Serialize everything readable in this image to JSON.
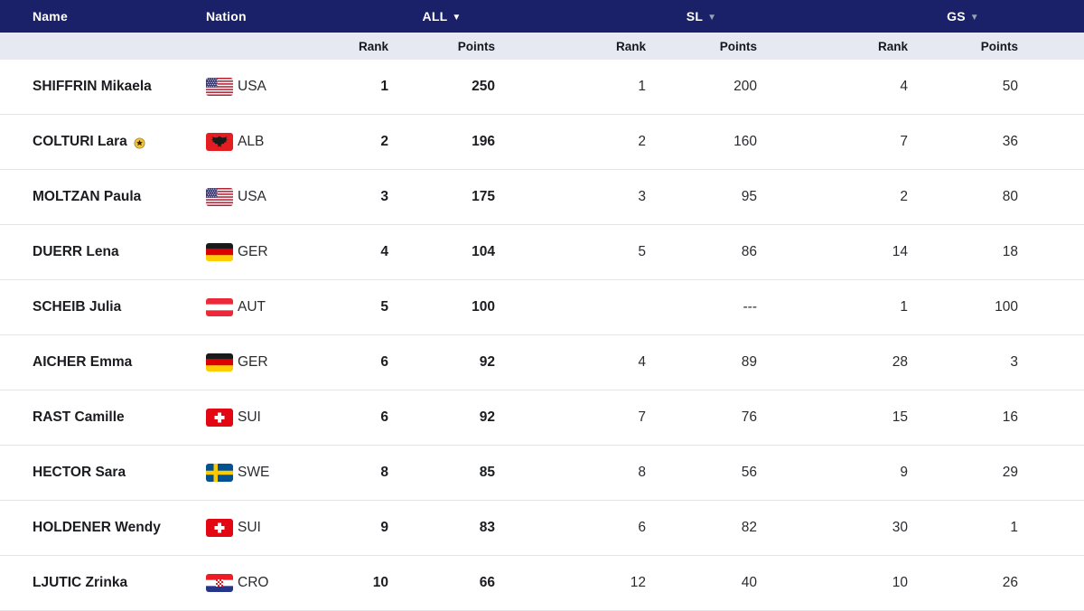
{
  "header": {
    "name_label": "Name",
    "nation_label": "Nation",
    "groups": [
      {
        "id": "all",
        "label": "ALL",
        "sort_arrow": "▼",
        "active": true
      },
      {
        "id": "sl",
        "label": "SL",
        "sort_arrow": "▼",
        "active": false
      },
      {
        "id": "gs",
        "label": "GS",
        "sort_arrow": "▼",
        "active": false
      }
    ],
    "sub_columns": {
      "rank": "Rank",
      "points": "Points"
    }
  },
  "colors": {
    "header_bg": "#1A2168",
    "header_text": "#FFFFFF",
    "subheader_bg": "#E7E9F2",
    "active_arrow": "#FFFFFF",
    "inactive_arrow": "#97A0B4",
    "row_border": "#E5E5E8",
    "text": "#1B1C20"
  },
  "rows": [
    {
      "name": "SHIFFRIN Mikaela",
      "badge": false,
      "nation": "USA",
      "flag": "usa",
      "all": {
        "rank": "1",
        "points": "250"
      },
      "sl": {
        "rank": "1",
        "points": "200"
      },
      "gs": {
        "rank": "4",
        "points": "50"
      }
    },
    {
      "name": "COLTURI Lara",
      "badge": true,
      "nation": "ALB",
      "flag": "alb",
      "all": {
        "rank": "2",
        "points": "196"
      },
      "sl": {
        "rank": "2",
        "points": "160"
      },
      "gs": {
        "rank": "7",
        "points": "36"
      }
    },
    {
      "name": "MOLTZAN Paula",
      "badge": false,
      "nation": "USA",
      "flag": "usa",
      "all": {
        "rank": "3",
        "points": "175"
      },
      "sl": {
        "rank": "3",
        "points": "95"
      },
      "gs": {
        "rank": "2",
        "points": "80"
      }
    },
    {
      "name": "DUERR Lena",
      "badge": false,
      "nation": "GER",
      "flag": "ger",
      "all": {
        "rank": "4",
        "points": "104"
      },
      "sl": {
        "rank": "5",
        "points": "86"
      },
      "gs": {
        "rank": "14",
        "points": "18"
      }
    },
    {
      "name": "SCHEIB Julia",
      "badge": false,
      "nation": "AUT",
      "flag": "aut",
      "all": {
        "rank": "5",
        "points": "100"
      },
      "sl": {
        "rank": "",
        "points": "---"
      },
      "gs": {
        "rank": "1",
        "points": "100"
      }
    },
    {
      "name": "AICHER Emma",
      "badge": false,
      "nation": "GER",
      "flag": "ger",
      "all": {
        "rank": "6",
        "points": "92"
      },
      "sl": {
        "rank": "4",
        "points": "89"
      },
      "gs": {
        "rank": "28",
        "points": "3"
      }
    },
    {
      "name": "RAST Camille",
      "badge": false,
      "nation": "SUI",
      "flag": "sui",
      "all": {
        "rank": "6",
        "points": "92"
      },
      "sl": {
        "rank": "7",
        "points": "76"
      },
      "gs": {
        "rank": "15",
        "points": "16"
      }
    },
    {
      "name": "HECTOR Sara",
      "badge": false,
      "nation": "SWE",
      "flag": "swe",
      "all": {
        "rank": "8",
        "points": "85"
      },
      "sl": {
        "rank": "8",
        "points": "56"
      },
      "gs": {
        "rank": "9",
        "points": "29"
      }
    },
    {
      "name": "HOLDENER Wendy",
      "badge": false,
      "nation": "SUI",
      "flag": "sui",
      "all": {
        "rank": "9",
        "points": "83"
      },
      "sl": {
        "rank": "6",
        "points": "82"
      },
      "gs": {
        "rank": "30",
        "points": "1"
      }
    },
    {
      "name": "LJUTIC Zrinka",
      "badge": false,
      "nation": "CRO",
      "flag": "cro",
      "all": {
        "rank": "10",
        "points": "66"
      },
      "sl": {
        "rank": "12",
        "points": "40"
      },
      "gs": {
        "rank": "10",
        "points": "26"
      }
    }
  ]
}
